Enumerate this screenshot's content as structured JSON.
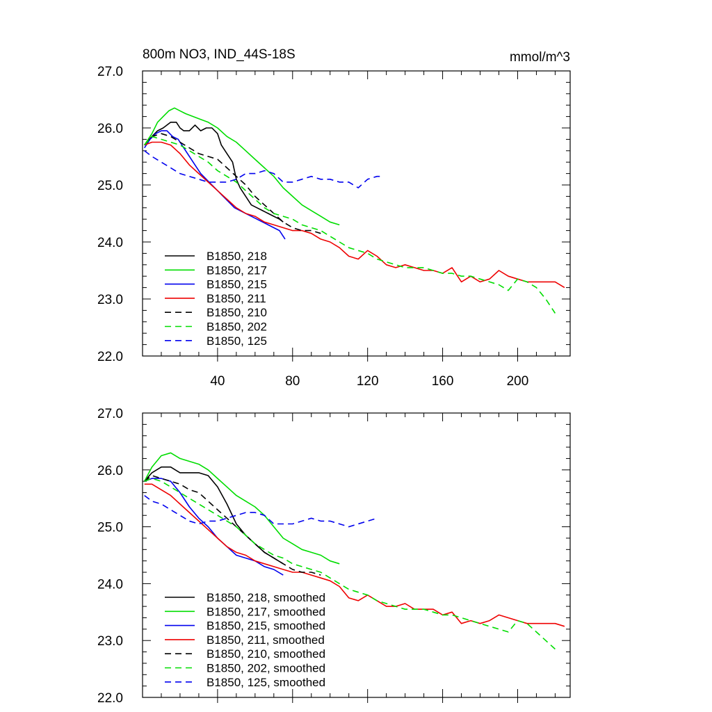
{
  "chart_data": [
    {
      "type": "line",
      "title": "800m NO3, IND_44S-18S",
      "units": "mmol/m^3",
      "xlim": [
        0,
        228
      ],
      "ylim": [
        22.0,
        27.0
      ],
      "x_ticks": [
        40,
        80,
        120,
        160,
        200
      ],
      "x_tick_labels": [
        "40",
        "80",
        "120",
        "160",
        "200"
      ],
      "y_ticks": [
        22.0,
        23.0,
        24.0,
        25.0,
        26.0,
        27.0
      ],
      "y_tick_labels": [
        "22.0",
        "23.0",
        "24.0",
        "25.0",
        "26.0",
        "27.0"
      ],
      "legend_position": "bottom-left",
      "series": [
        {
          "name": "B1850, 218",
          "color": "#000000",
          "dash": "solid",
          "x": [
            1,
            5,
            8,
            11,
            13,
            15,
            18,
            20,
            22,
            25,
            28,
            31,
            34,
            37,
            40,
            42,
            45,
            48,
            50,
            52,
            55,
            58,
            61,
            64,
            67,
            70,
            73,
            75
          ],
          "y": [
            25.7,
            25.85,
            25.95,
            26.0,
            26.05,
            26.1,
            26.1,
            26.0,
            25.95,
            25.95,
            26.05,
            25.95,
            26.0,
            26.0,
            25.9,
            25.7,
            25.55,
            25.4,
            25.1,
            24.95,
            24.8,
            24.65,
            24.6,
            24.55,
            24.5,
            24.45,
            24.4,
            24.35
          ]
        },
        {
          "name": "B1850, 217",
          "color": "#00dd00",
          "dash": "solid",
          "x": [
            1,
            5,
            8,
            11,
            14,
            17,
            20,
            23,
            27,
            31,
            35,
            40,
            45,
            50,
            55,
            60,
            65,
            70,
            75,
            80,
            85,
            90,
            95,
            100,
            105
          ],
          "y": [
            25.7,
            25.9,
            26.1,
            26.2,
            26.3,
            26.35,
            26.3,
            26.25,
            26.2,
            26.15,
            26.1,
            26.0,
            25.85,
            25.75,
            25.6,
            25.45,
            25.3,
            25.15,
            24.95,
            24.8,
            24.65,
            24.55,
            24.45,
            24.35,
            24.3
          ]
        },
        {
          "name": "B1850, 215",
          "color": "#0000ee",
          "dash": "solid",
          "x": [
            1,
            4,
            7,
            10,
            13,
            16,
            19,
            22,
            25,
            28,
            31,
            34,
            37,
            40,
            43,
            46,
            49,
            52,
            55,
            58,
            61,
            64,
            67,
            70,
            73,
            76
          ],
          "y": [
            25.65,
            25.8,
            25.9,
            25.95,
            25.95,
            25.85,
            25.8,
            25.65,
            25.5,
            25.35,
            25.2,
            25.1,
            25.0,
            24.9,
            24.8,
            24.7,
            24.6,
            24.55,
            24.5,
            24.45,
            24.4,
            24.35,
            24.3,
            24.25,
            24.2,
            24.05
          ]
        },
        {
          "name": "B1850, 211",
          "color": "#ee0000",
          "dash": "solid",
          "x": [
            1,
            5,
            10,
            15,
            20,
            25,
            30,
            35,
            40,
            45,
            50,
            55,
            60,
            65,
            70,
            75,
            80,
            85,
            90,
            95,
            100,
            105,
            110,
            115,
            120,
            125,
            130,
            135,
            140,
            145,
            150,
            155,
            160,
            165,
            170,
            175,
            180,
            185,
            190,
            195,
            200,
            205,
            210,
            215,
            220,
            225
          ],
          "y": [
            25.7,
            25.75,
            25.75,
            25.7,
            25.55,
            25.35,
            25.2,
            25.05,
            24.9,
            24.75,
            24.6,
            24.5,
            24.45,
            24.35,
            24.3,
            24.25,
            24.2,
            24.2,
            24.15,
            24.05,
            24.0,
            23.9,
            23.75,
            23.7,
            23.85,
            23.75,
            23.6,
            23.55,
            23.6,
            23.55,
            23.5,
            23.5,
            23.45,
            23.55,
            23.3,
            23.4,
            23.3,
            23.35,
            23.5,
            23.4,
            23.35,
            23.3,
            23.3,
            23.3,
            23.3,
            23.2
          ]
        },
        {
          "name": "B1850, 210",
          "color": "#000000",
          "dash": "dashed",
          "x": [
            1,
            5,
            10,
            15,
            20,
            25,
            30,
            35,
            40,
            45,
            50,
            55,
            60,
            65,
            70,
            75,
            80,
            85,
            90,
            95
          ],
          "y": [
            25.7,
            25.85,
            25.9,
            25.85,
            25.75,
            25.65,
            25.55,
            25.5,
            25.45,
            25.3,
            25.15,
            25.0,
            24.8,
            24.65,
            24.5,
            24.35,
            24.25,
            24.2,
            24.2,
            24.15
          ]
        },
        {
          "name": "B1850, 202",
          "color": "#00dd00",
          "dash": "dashed",
          "x": [
            1,
            5,
            10,
            15,
            20,
            25,
            30,
            35,
            40,
            45,
            50,
            55,
            60,
            65,
            70,
            75,
            80,
            85,
            90,
            95,
            100,
            105,
            110,
            115,
            120,
            125,
            130,
            135,
            140,
            145,
            150,
            155,
            160,
            165,
            170,
            175,
            180,
            185,
            190,
            195,
            200,
            205,
            210,
            215,
            220
          ],
          "y": [
            25.7,
            25.85,
            25.8,
            25.75,
            25.7,
            25.6,
            25.5,
            25.4,
            25.25,
            25.15,
            25.05,
            24.9,
            24.75,
            24.6,
            24.5,
            24.45,
            24.4,
            24.3,
            24.25,
            24.2,
            24.1,
            24.0,
            23.9,
            23.85,
            23.8,
            23.7,
            23.65,
            23.6,
            23.55,
            23.55,
            23.55,
            23.5,
            23.45,
            23.45,
            23.4,
            23.4,
            23.35,
            23.3,
            23.25,
            23.15,
            23.35,
            23.3,
            23.2,
            23.0,
            22.75
          ]
        },
        {
          "name": "B1850, 125",
          "color": "#0000ee",
          "dash": "dashed",
          "x": [
            1,
            5,
            10,
            15,
            20,
            25,
            30,
            35,
            40,
            45,
            50,
            55,
            60,
            65,
            70,
            75,
            80,
            85,
            90,
            95,
            100,
            105,
            110,
            115,
            120,
            125,
            128
          ],
          "y": [
            25.6,
            25.5,
            25.4,
            25.3,
            25.2,
            25.15,
            25.1,
            25.05,
            25.05,
            25.05,
            25.1,
            25.2,
            25.2,
            25.25,
            25.2,
            25.05,
            25.05,
            25.1,
            25.15,
            25.1,
            25.1,
            25.05,
            25.05,
            24.95,
            25.1,
            25.15,
            25.15
          ]
        }
      ]
    },
    {
      "type": "line",
      "title": "",
      "xlim": [
        0,
        228
      ],
      "ylim": [
        22.0,
        27.0
      ],
      "x_ticks": [
        40,
        80,
        120,
        160,
        200
      ],
      "y_ticks": [
        22.0,
        23.0,
        24.0,
        25.0,
        26.0,
        27.0
      ],
      "y_tick_labels": [
        "22.0",
        "23.0",
        "24.0",
        "25.0",
        "26.0",
        "27.0"
      ],
      "legend_position": "bottom-left",
      "series": [
        {
          "name": "B1850, 218, smoothed",
          "color": "#000000",
          "dash": "solid",
          "x": [
            1,
            5,
            10,
            15,
            20,
            25,
            30,
            35,
            40,
            45,
            50,
            55,
            60,
            65,
            70,
            75
          ],
          "y": [
            25.8,
            25.95,
            26.05,
            26.05,
            25.95,
            25.95,
            25.95,
            25.9,
            25.7,
            25.4,
            25.05,
            24.85,
            24.7,
            24.55,
            24.45,
            24.35
          ]
        },
        {
          "name": "B1850, 217, smoothed",
          "color": "#00dd00",
          "dash": "solid",
          "x": [
            1,
            5,
            10,
            15,
            20,
            25,
            30,
            35,
            40,
            45,
            50,
            55,
            60,
            65,
            70,
            75,
            80,
            85,
            90,
            95,
            100,
            105
          ],
          "y": [
            25.8,
            26.05,
            26.25,
            26.3,
            26.2,
            26.15,
            26.1,
            26.0,
            25.85,
            25.7,
            25.55,
            25.45,
            25.35,
            25.2,
            25.0,
            24.8,
            24.7,
            24.6,
            24.55,
            24.5,
            24.4,
            24.35
          ]
        },
        {
          "name": "B1850, 215, smoothed",
          "color": "#0000ee",
          "dash": "solid",
          "x": [
            1,
            5,
            10,
            15,
            20,
            25,
            30,
            35,
            40,
            45,
            50,
            55,
            60,
            65,
            70,
            75
          ],
          "y": [
            25.8,
            25.85,
            25.85,
            25.8,
            25.6,
            25.35,
            25.15,
            25.0,
            24.8,
            24.65,
            24.5,
            24.45,
            24.4,
            24.3,
            24.25,
            24.15
          ]
        },
        {
          "name": "B1850, 211, smoothed",
          "color": "#ee0000",
          "dash": "solid",
          "x": [
            1,
            5,
            10,
            15,
            20,
            25,
            30,
            35,
            40,
            45,
            50,
            55,
            60,
            65,
            70,
            75,
            80,
            85,
            90,
            95,
            100,
            105,
            110,
            115,
            120,
            125,
            130,
            135,
            140,
            145,
            150,
            155,
            160,
            165,
            170,
            175,
            180,
            185,
            190,
            195,
            200,
            205,
            210,
            215,
            220,
            225
          ],
          "y": [
            25.75,
            25.75,
            25.65,
            25.55,
            25.4,
            25.25,
            25.1,
            24.95,
            24.8,
            24.65,
            24.55,
            24.5,
            24.4,
            24.35,
            24.3,
            24.25,
            24.2,
            24.2,
            24.15,
            24.1,
            24.05,
            23.95,
            23.75,
            23.7,
            23.8,
            23.7,
            23.6,
            23.6,
            23.65,
            23.55,
            23.55,
            23.55,
            23.45,
            23.5,
            23.3,
            23.35,
            23.3,
            23.35,
            23.45,
            23.4,
            23.35,
            23.3,
            23.3,
            23.3,
            23.3,
            23.25
          ]
        },
        {
          "name": "B1850, 210, smoothed",
          "color": "#000000",
          "dash": "dashed",
          "x": [
            1,
            5,
            10,
            15,
            20,
            25,
            30,
            35,
            40,
            45,
            50,
            55,
            60,
            65,
            70,
            75,
            80,
            85,
            90,
            95
          ],
          "y": [
            25.8,
            25.9,
            25.85,
            25.8,
            25.75,
            25.65,
            25.6,
            25.45,
            25.3,
            25.15,
            25.0,
            24.85,
            24.7,
            24.55,
            24.45,
            24.35,
            24.25,
            24.2,
            24.2,
            24.15
          ]
        },
        {
          "name": "B1850, 202, smoothed",
          "color": "#00dd00",
          "dash": "dashed",
          "x": [
            1,
            5,
            10,
            15,
            20,
            25,
            30,
            35,
            40,
            45,
            50,
            55,
            60,
            65,
            70,
            75,
            80,
            85,
            90,
            95,
            100,
            105,
            110,
            115,
            120,
            125,
            130,
            135,
            140,
            145,
            150,
            155,
            160,
            165,
            170,
            175,
            180,
            185,
            190,
            195,
            200,
            205,
            210,
            215,
            220
          ],
          "y": [
            25.8,
            25.85,
            25.8,
            25.7,
            25.6,
            25.5,
            25.4,
            25.3,
            25.2,
            25.1,
            25.0,
            24.85,
            24.7,
            24.6,
            24.5,
            24.45,
            24.35,
            24.3,
            24.25,
            24.2,
            24.1,
            24.0,
            23.9,
            23.85,
            23.8,
            23.7,
            23.65,
            23.6,
            23.55,
            23.55,
            23.55,
            23.5,
            23.45,
            23.45,
            23.4,
            23.35,
            23.3,
            23.25,
            23.2,
            23.15,
            23.35,
            23.3,
            23.15,
            23.0,
            22.85
          ]
        },
        {
          "name": "B1850, 125, smoothed",
          "color": "#0000ee",
          "dash": "dashed",
          "x": [
            1,
            5,
            10,
            15,
            20,
            25,
            30,
            35,
            40,
            45,
            50,
            55,
            60,
            65,
            70,
            75,
            80,
            85,
            90,
            95,
            100,
            105,
            110,
            115,
            120,
            125
          ],
          "y": [
            25.55,
            25.45,
            25.4,
            25.3,
            25.2,
            25.1,
            25.05,
            25.1,
            25.1,
            25.15,
            25.2,
            25.25,
            25.25,
            25.2,
            25.05,
            25.05,
            25.05,
            25.1,
            25.15,
            25.1,
            25.1,
            25.05,
            25.0,
            25.05,
            25.1,
            25.15
          ]
        }
      ]
    }
  ]
}
